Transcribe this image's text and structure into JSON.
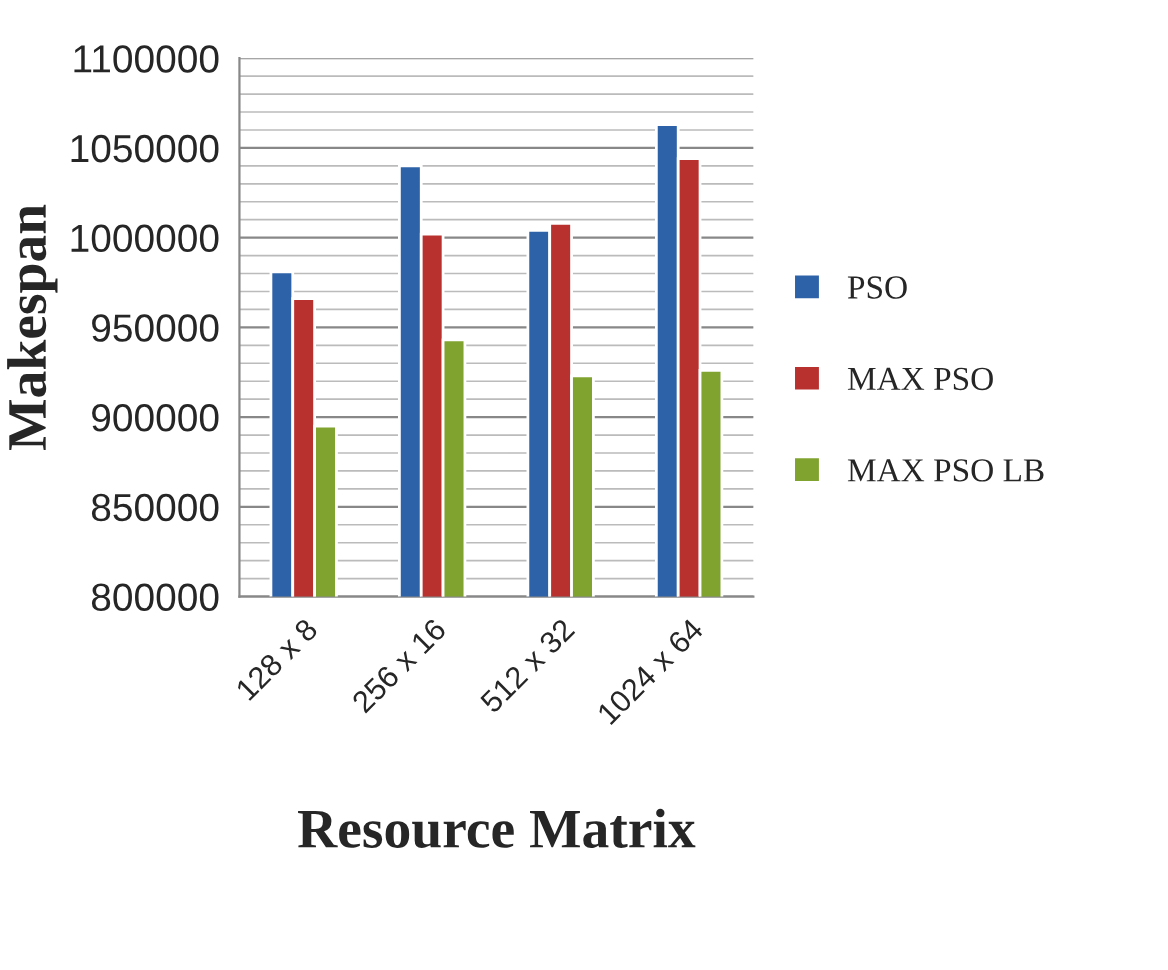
{
  "chart_data": {
    "type": "bar",
    "xlabel": "Resource Matrix",
    "ylabel": "Makespan",
    "categories": [
      "128 x 8",
      "256 x 16",
      "512 x 32",
      "1024 x 64"
    ],
    "series": [
      {
        "name": "PSO",
        "color": "#2e62a8",
        "values": [
          981000,
          1040000,
          1004000,
          1063000
        ]
      },
      {
        "name": "MAX PSO",
        "color": "#b8312f",
        "values": [
          966000,
          1002000,
          1008000,
          1044000
        ]
      },
      {
        "name": "MAX PSO LB",
        "color": "#7fa32e",
        "values": [
          895000,
          943000,
          923000,
          926000
        ]
      }
    ],
    "ylim": [
      800000,
      1100000
    ],
    "yticks": [
      800000,
      850000,
      900000,
      950000,
      1000000,
      1050000,
      1100000
    ],
    "grid": "y",
    "legend": "right"
  }
}
